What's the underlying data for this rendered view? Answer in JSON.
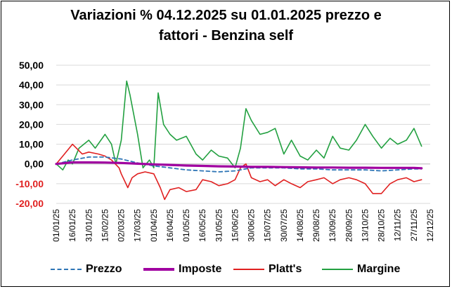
{
  "title_line1": "Variazioni % 04.12.2025 su 01.01.2025 prezzo e",
  "title_line2": "fattori - Benzina self",
  "chart_data": {
    "type": "line",
    "title": "Variazioni % 04.12.2025 su 01.01.2025 prezzo e fattori - Benzina self",
    "xlabel": "",
    "ylabel": "",
    "ylim": [
      -20,
      50
    ],
    "yticks": [
      "50,00",
      "40,00",
      "30,00",
      "20,00",
      "10,00",
      "0,00",
      "-10,00",
      "-20,00"
    ],
    "negative_tick_color": "#e02020",
    "xlim_days": [
      0,
      345
    ],
    "xticks": [
      "01/01/25",
      "16/01/25",
      "31/01/25",
      "15/02/25",
      "02/03/25",
      "17/03/25",
      "01/04/25",
      "16/04/25",
      "01/05/25",
      "16/05/25",
      "31/05/25",
      "15/06/25",
      "30/06/25",
      "15/07/25",
      "30/07/25",
      "14/08/25",
      "29/08/25",
      "13/09/25",
      "28/09/25",
      "13/10/25",
      "28/10/25",
      "12/11/25",
      "27/11/25",
      "12/12/25"
    ],
    "grid": "horizontal",
    "legend_position": "bottom",
    "series": [
      {
        "name": "Prezzo",
        "color": "#2e75b6",
        "style": "dashed",
        "x": [
          "01/01/25",
          "16/01/25",
          "31/01/25",
          "15/02/25",
          "02/03/25",
          "17/03/25",
          "01/04/25",
          "16/04/25",
          "01/05/25",
          "16/05/25",
          "31/05/25",
          "15/06/25",
          "30/06/25",
          "15/07/25",
          "30/07/25",
          "14/08/25",
          "29/08/25",
          "13/09/25",
          "28/09/25",
          "13/10/25",
          "28/10/25",
          "12/11/25",
          "27/11/25",
          "04/12/25"
        ],
        "values": [
          0,
          2.0,
          3.5,
          3.5,
          2.5,
          0.5,
          -1.0,
          -2.0,
          -3.0,
          -3.5,
          -4.0,
          -3.5,
          -2.0,
          -2.0,
          -2.0,
          -2.5,
          -2.5,
          -3.0,
          -3.0,
          -3.0,
          -3.5,
          -3.0,
          -2.5,
          -2.5
        ]
      },
      {
        "name": "Imposte",
        "color": "#a000a0",
        "style": "solid",
        "x": [
          "01/01/25",
          "16/01/25",
          "31/01/25",
          "15/02/25",
          "02/03/25",
          "17/03/25",
          "01/04/25",
          "16/04/25",
          "01/05/25",
          "16/05/25",
          "31/05/25",
          "15/06/25",
          "30/06/25",
          "15/07/25",
          "30/07/25",
          "14/08/25",
          "29/08/25",
          "13/09/25",
          "28/09/25",
          "13/10/25",
          "28/10/25",
          "12/11/25",
          "27/11/25",
          "04/12/25"
        ],
        "values": [
          0,
          0.8,
          0.8,
          0.7,
          0.5,
          0.1,
          -0.2,
          -0.5,
          -0.8,
          -1.0,
          -1.2,
          -1.3,
          -1.5,
          -1.5,
          -1.6,
          -1.7,
          -1.8,
          -1.8,
          -1.9,
          -1.9,
          -2.0,
          -2.0,
          -2.0,
          -2.2
        ]
      },
      {
        "name": "Platt's",
        "color": "#e02020",
        "style": "solid",
        "x": [
          "01/01/25",
          "07/01/25",
          "16/01/25",
          "25/01/25",
          "31/01/25",
          "09/02/25",
          "15/02/25",
          "21/02/25",
          "28/02/25",
          "02/03/25",
          "08/03/25",
          "12/03/25",
          "17/03/25",
          "24/03/25",
          "01/04/25",
          "07/04/25",
          "11/04/25",
          "16/04/25",
          "24/04/25",
          "01/05/25",
          "10/05/25",
          "16/05/25",
          "24/05/25",
          "31/05/25",
          "08/06/25",
          "15/06/25",
          "20/06/25",
          "25/06/25",
          "30/06/25",
          "08/07/25",
          "15/07/25",
          "22/07/25",
          "30/07/25",
          "06/08/25",
          "14/08/25",
          "21/08/25",
          "29/08/25",
          "05/09/25",
          "13/09/25",
          "20/09/25",
          "28/09/25",
          "05/10/25",
          "13/10/25",
          "20/10/25",
          "28/10/25",
          "05/11/25",
          "12/11/25",
          "20/11/25",
          "27/11/25",
          "04/12/25"
        ],
        "values": [
          0,
          4,
          10,
          5,
          6,
          5,
          4,
          2,
          -2,
          -5,
          -12,
          -7,
          -5,
          -4,
          -5,
          -12,
          -18,
          -13,
          -12,
          -14,
          -13,
          -8,
          -9,
          -11,
          -10,
          -8,
          -2,
          0,
          -7,
          -9,
          -8,
          -11,
          -8,
          -10,
          -12,
          -9,
          -8,
          -7,
          -10,
          -8,
          -7,
          -8,
          -10,
          -15,
          -15,
          -10,
          -8,
          -7,
          -9,
          -8
        ]
      },
      {
        "name": "Margine",
        "color": "#22a040",
        "style": "solid",
        "x": [
          "01/01/25",
          "07/01/25",
          "12/01/25",
          "16/01/25",
          "22/01/25",
          "31/01/25",
          "06/02/25",
          "15/02/25",
          "21/02/25",
          "25/02/25",
          "02/03/25",
          "07/03/25",
          "10/03/25",
          "17/03/25",
          "22/03/25",
          "28/03/25",
          "01/04/25",
          "05/04/25",
          "10/04/25",
          "16/04/25",
          "22/04/25",
          "01/05/25",
          "10/05/25",
          "16/05/25",
          "24/05/25",
          "31/05/25",
          "08/06/25",
          "15/06/25",
          "20/06/25",
          "25/06/25",
          "30/06/25",
          "08/07/25",
          "15/07/25",
          "22/07/25",
          "30/07/25",
          "06/08/25",
          "14/08/25",
          "21/08/25",
          "29/08/25",
          "05/09/25",
          "13/09/25",
          "20/09/25",
          "28/09/25",
          "05/10/25",
          "13/10/25",
          "20/10/25",
          "28/10/25",
          "05/11/25",
          "12/11/25",
          "20/11/25",
          "27/11/25",
          "04/12/25"
        ],
        "values": [
          0,
          -3,
          2,
          0,
          8,
          12,
          8,
          15,
          10,
          0,
          12,
          42,
          35,
          15,
          -2,
          2,
          -2,
          36,
          20,
          15,
          12,
          14,
          5,
          2,
          7,
          4,
          3,
          -2,
          8,
          28,
          22,
          15,
          16,
          18,
          5,
          12,
          4,
          2,
          7,
          3,
          14,
          8,
          7,
          12,
          20,
          14,
          8,
          13,
          10,
          12,
          18,
          9
        ]
      }
    ]
  }
}
